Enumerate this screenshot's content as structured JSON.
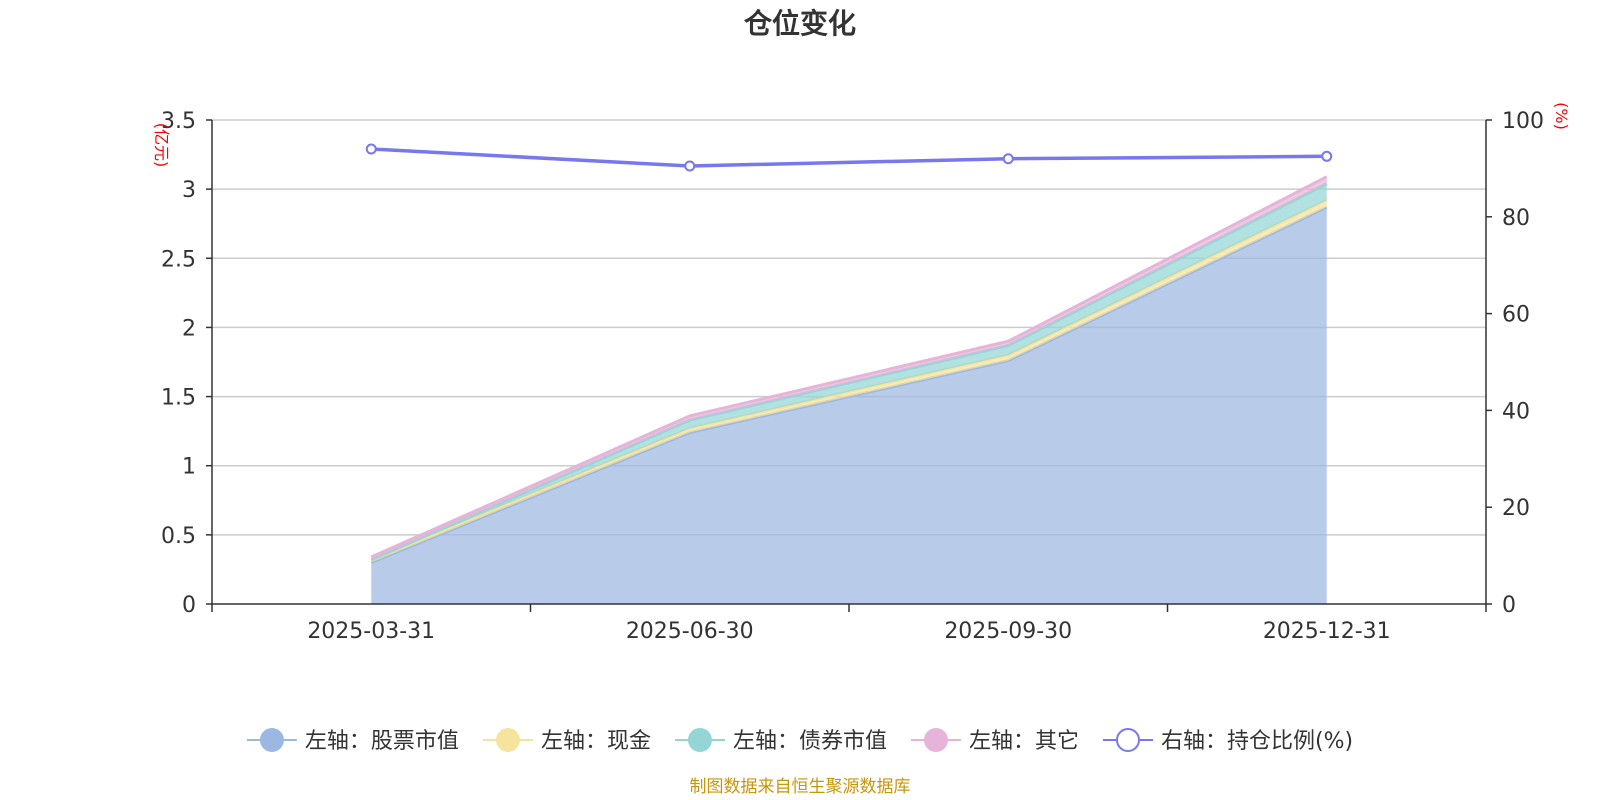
{
  "chart_data": {
    "type": "area",
    "title": "仓位变化",
    "categories": [
      "2025-03-31",
      "2025-06-30",
      "2025-09-30",
      "2025-12-31"
    ],
    "left_axis": {
      "unit": "(亿元)",
      "ylim": [
        0,
        3.5
      ],
      "ticks": [
        "0",
        "0.5",
        "1",
        "1.5",
        "2",
        "2.5",
        "3",
        "3.5"
      ]
    },
    "right_axis": {
      "unit": "(%)",
      "ylim": [
        0,
        100
      ],
      "ticks": [
        "0",
        "20",
        "40",
        "60",
        "80",
        "100"
      ]
    },
    "grid": true,
    "stacked_series": [
      {
        "name": "左轴：股票市值",
        "color": "#9cb8e2",
        "values": [
          0.3,
          1.24,
          1.76,
          2.87
        ]
      },
      {
        "name": "左轴：现金",
        "color": "#f6e39e",
        "values": [
          0.02,
          0.03,
          0.04,
          0.05
        ]
      },
      {
        "name": "左轴：债券市值",
        "color": "#93d6d5",
        "values": [
          0.0,
          0.06,
          0.07,
          0.12
        ]
      },
      {
        "name": "左轴：其它",
        "color": "#e7b4d9",
        "values": [
          0.02,
          0.03,
          0.03,
          0.05
        ]
      }
    ],
    "line_series": {
      "name": "右轴：持仓比例(%)",
      "color": "#7777ee",
      "values": [
        94.0,
        90.5,
        92.0,
        92.5
      ]
    },
    "legend_position": "bottom-center",
    "source": "制图数据来自恒生聚源数据库"
  }
}
